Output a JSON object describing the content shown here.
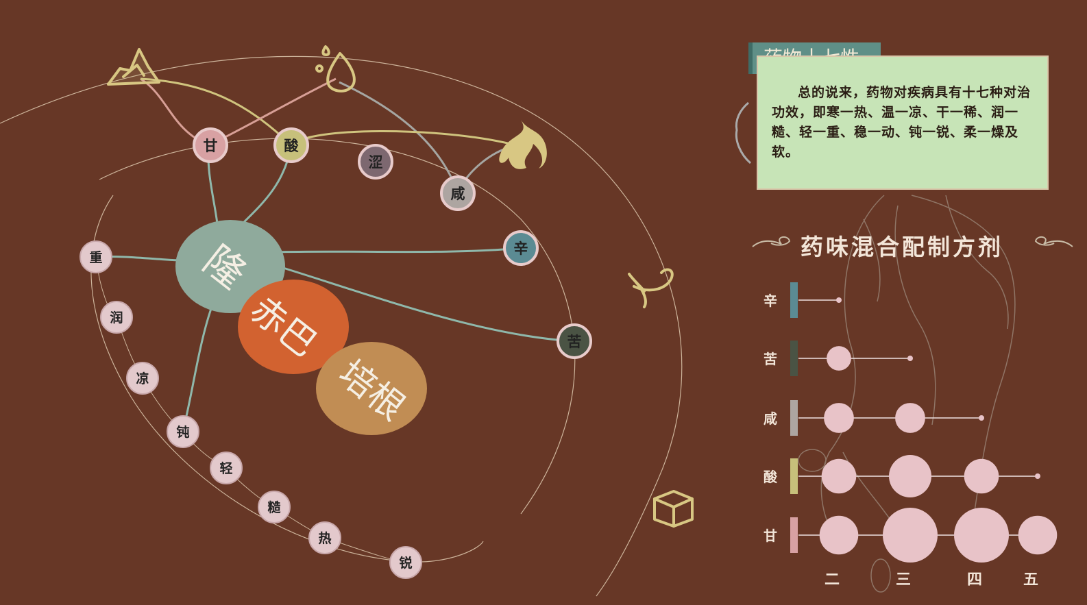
{
  "center": {
    "long": "隆",
    "chiba": "赤巴",
    "peigen": "培根"
  },
  "tastes": [
    {
      "id": "gan",
      "label": "甘",
      "color": "#d8a1a3"
    },
    {
      "id": "suan",
      "label": "酸",
      "color": "#c7c07b"
    },
    {
      "id": "se",
      "label": "涩",
      "color": "#7d6870"
    },
    {
      "id": "xian",
      "label": "咸",
      "color": "#ada5a1"
    },
    {
      "id": "xin",
      "label": "辛",
      "color": "#5b8b93"
    },
    {
      "id": "ku",
      "label": "苦",
      "color": "#4a5344"
    }
  ],
  "properties": [
    "重",
    "润",
    "凉",
    "钝",
    "轻",
    "糙",
    "热",
    "锐"
  ],
  "elements": [
    {
      "name": "earth-icon"
    },
    {
      "name": "water-icon"
    },
    {
      "name": "fire-icon"
    },
    {
      "name": "wind-icon"
    },
    {
      "name": "space-icon"
    }
  ],
  "info": {
    "title": "药物十七性",
    "body": "总的说来，药物对疾病具有十七种对治功效，即寒一热、温一凉、干一稀、润一糙、轻一重、稳一动、钝一锐、柔一燥及软。"
  },
  "chart_data": {
    "type": "scatter",
    "title": "药味混合配制方剂",
    "x_categories": [
      "二",
      "三",
      "四",
      "五"
    ],
    "series": [
      {
        "name": "辛",
        "color": "#5b8b93",
        "values": [
          1
        ]
      },
      {
        "name": "苦",
        "color": "#4a5344",
        "values": [
          2,
          1
        ]
      },
      {
        "name": "咸",
        "color": "#ada5a1",
        "values": [
          3,
          3,
          1
        ]
      },
      {
        "name": "酸",
        "color": "#c7c07b",
        "values": [
          4,
          6,
          4,
          1
        ]
      },
      {
        "name": "甘",
        "color": "#d8a1a3",
        "values": [
          5,
          10,
          10,
          5
        ]
      }
    ]
  }
}
